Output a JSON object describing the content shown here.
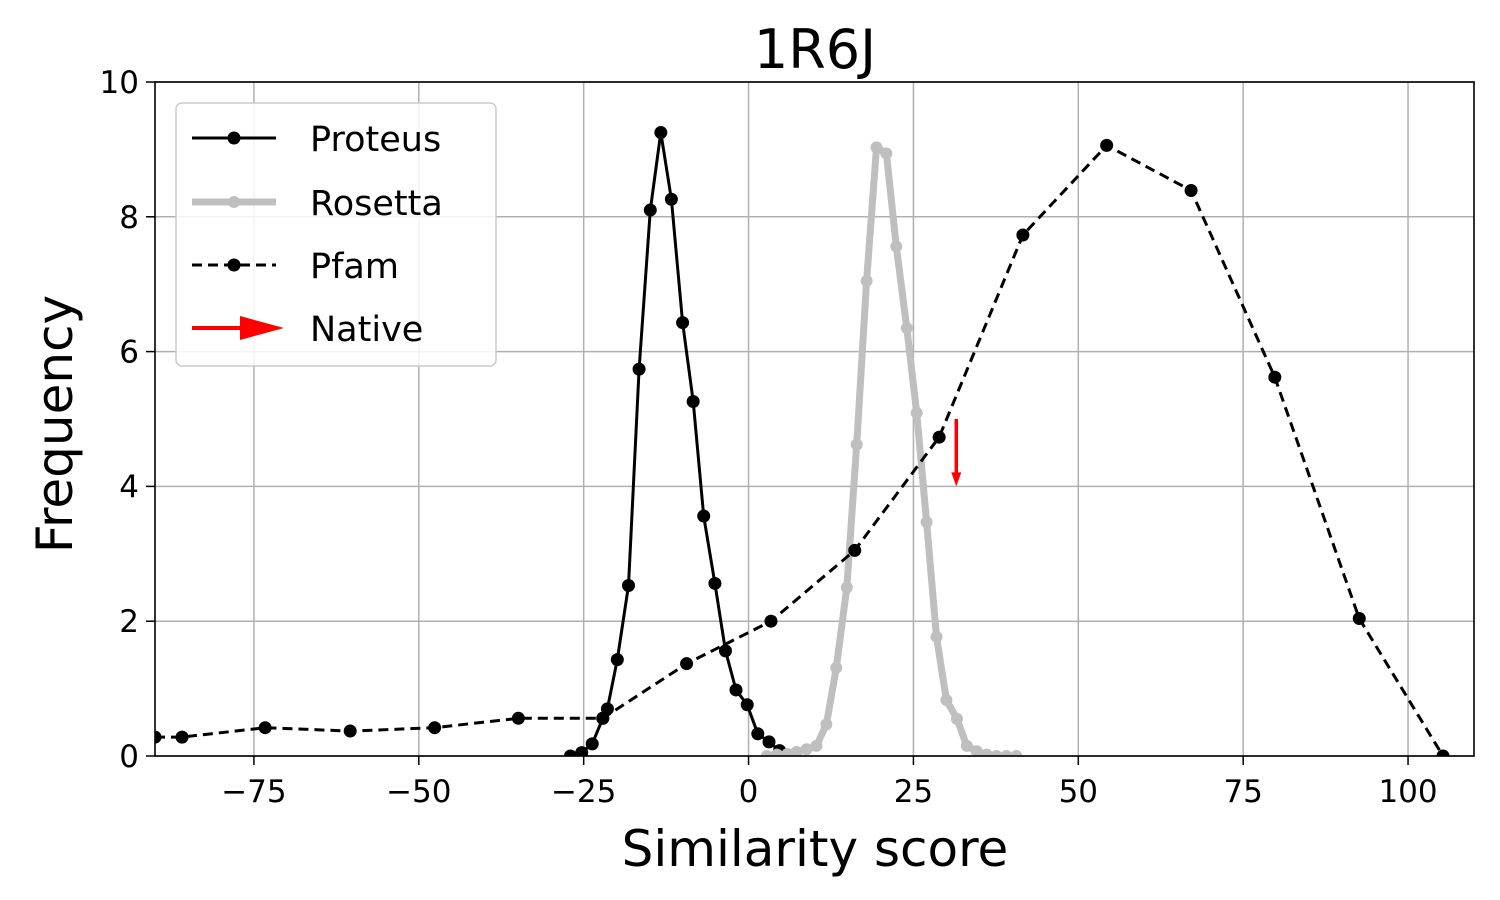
{
  "chart_data": {
    "type": "line",
    "title": "1R6J",
    "xlabel": "Similarity score",
    "ylabel": "Frequency",
    "xlim": [
      -90,
      110
    ],
    "ylim": [
      0,
      10
    ],
    "xticks": [
      -75,
      -50,
      -25,
      0,
      25,
      50,
      75,
      100
    ],
    "xtick_labels": [
      "−75",
      "−50",
      "−25",
      "0",
      "25",
      "50",
      "75",
      "100"
    ],
    "yticks": [
      0,
      2,
      4,
      6,
      8,
      10
    ],
    "ytick_labels": [
      "0",
      "2",
      "4",
      "6",
      "8",
      "10"
    ],
    "grid": true,
    "legend_position": "top-left",
    "series": [
      {
        "name": "Proteus",
        "color": "#000000",
        "style": "solid",
        "x": [
          -27,
          -25.3,
          -23.7,
          -22.1,
          -21.4,
          -19.9,
          -18.2,
          -16.6,
          -14.9,
          -13.3,
          -11.7,
          -10,
          -8.4,
          -6.8,
          -5.1,
          -3.5,
          -1.9,
          -0.2,
          1.4,
          3.1,
          4.7,
          6.3
        ],
        "y": [
          0,
          0.05,
          0.18,
          0.56,
          0.7,
          1.43,
          2.53,
          5.74,
          8.1,
          9.25,
          8.26,
          6.43,
          5.26,
          3.56,
          2.56,
          1.56,
          0.98,
          0.76,
          0.33,
          0.21,
          0.08,
          0
        ]
      },
      {
        "name": "Rosetta",
        "color": "#bfbfbf",
        "style": "solid-thick",
        "x": [
          2.8,
          4.3,
          5.9,
          7.3,
          8.8,
          10.3,
          11.8,
          13.3,
          14.9,
          16.4,
          17.9,
          19.4,
          20.9,
          22.4,
          24,
          25.5,
          27,
          28.5,
          30,
          31.6,
          33.1,
          34.6,
          36.1,
          37.6,
          39.1,
          40.6
        ],
        "y": [
          0,
          0.02,
          0.03,
          0.06,
          0.1,
          0.15,
          0.47,
          1.31,
          2.5,
          4.62,
          7.05,
          9.03,
          8.94,
          7.56,
          6.35,
          5.09,
          3.47,
          1.77,
          0.83,
          0.55,
          0.15,
          0.07,
          0.02,
          0,
          0,
          0
        ]
      },
      {
        "name": "Pfam",
        "color": "#000000",
        "style": "dashed",
        "x": [
          -90,
          -85.9,
          -73.3,
          -60.4,
          -47.6,
          -34.9,
          -22.1,
          -9.4,
          3.4,
          16.1,
          28.9,
          41.6,
          54.3,
          67.1,
          79.8,
          92.6,
          105.3
        ],
        "y": [
          0.28,
          0.28,
          0.42,
          0.37,
          0.42,
          0.56,
          0.56,
          1.37,
          2.0,
          3.05,
          4.73,
          7.73,
          9.06,
          8.39,
          5.62,
          2.04,
          0
        ]
      }
    ],
    "annotation": {
      "label": "Native",
      "color": "#ff0000",
      "x": 31.5,
      "y_from": 5.0,
      "y_to": 4.0
    }
  }
}
